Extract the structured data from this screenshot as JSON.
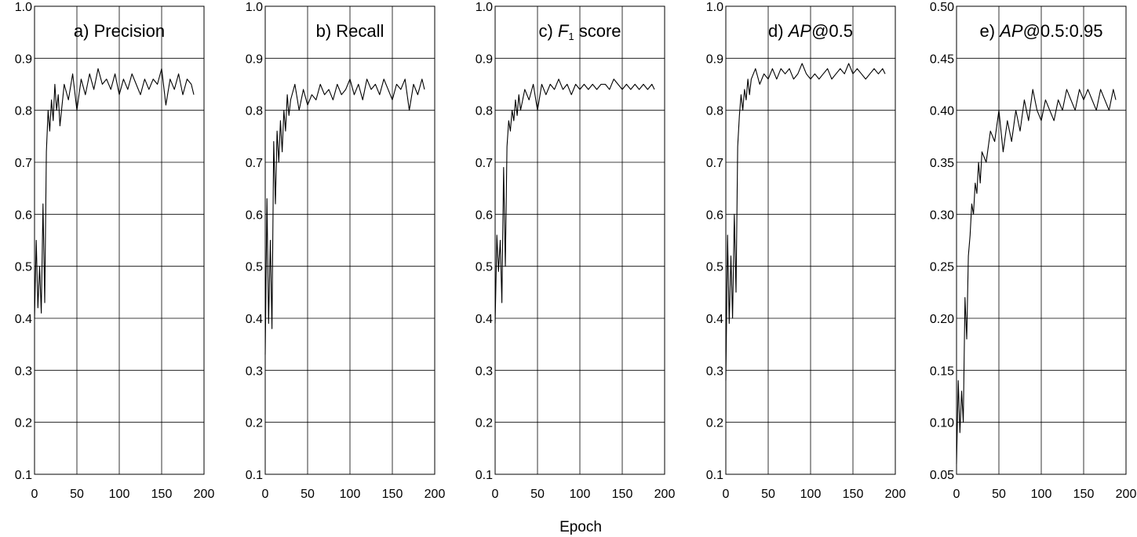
{
  "figure": {
    "xlabel": "Epoch"
  },
  "chart_data": [
    {
      "type": "line",
      "title_prefix": "a) ",
      "title_italic": "",
      "title_sub": "",
      "title_rest": "Precision",
      "xlim": [
        0,
        200
      ],
      "ylim": [
        0.1,
        1.0
      ],
      "xticks": [
        0,
        50,
        100,
        150,
        200
      ],
      "xtick_labels": [
        "0",
        "50",
        "100",
        "150",
        "200"
      ],
      "yticks": [
        0.1,
        0.2,
        0.3,
        0.4,
        0.5,
        0.6,
        0.7,
        0.8,
        0.9,
        1.0
      ],
      "ytick_labels": [
        "0.1",
        "0.2",
        "0.3",
        "0.4",
        "0.5",
        "0.6",
        "0.7",
        "0.8",
        "0.9",
        "1.0"
      ],
      "grid": true,
      "series": [
        {
          "x": [
            0,
            2,
            4,
            6,
            8,
            10,
            12,
            14,
            16,
            18,
            20,
            22,
            24,
            26,
            28,
            30,
            35,
            40,
            45,
            50,
            55,
            60,
            65,
            70,
            75,
            80,
            85,
            90,
            95,
            100,
            105,
            110,
            115,
            120,
            125,
            130,
            135,
            140,
            145,
            150,
            155,
            160,
            165,
            170,
            175,
            180,
            185,
            188
          ],
          "y": [
            0.4,
            0.55,
            0.42,
            0.5,
            0.41,
            0.62,
            0.43,
            0.72,
            0.8,
            0.76,
            0.82,
            0.78,
            0.85,
            0.8,
            0.83,
            0.77,
            0.85,
            0.82,
            0.87,
            0.8,
            0.86,
            0.83,
            0.87,
            0.84,
            0.88,
            0.85,
            0.86,
            0.84,
            0.87,
            0.83,
            0.86,
            0.84,
            0.87,
            0.85,
            0.83,
            0.86,
            0.84,
            0.86,
            0.85,
            0.88,
            0.81,
            0.86,
            0.84,
            0.87,
            0.83,
            0.86,
            0.85,
            0.83
          ]
        }
      ]
    },
    {
      "type": "line",
      "title_prefix": "b) ",
      "title_italic": "",
      "title_sub": "",
      "title_rest": "Recall",
      "xlim": [
        0,
        200
      ],
      "ylim": [
        0.1,
        1.0
      ],
      "xticks": [
        0,
        50,
        100,
        150,
        200
      ],
      "xtick_labels": [
        "0",
        "50",
        "100",
        "150",
        "200"
      ],
      "yticks": [
        0.1,
        0.2,
        0.3,
        0.4,
        0.5,
        0.6,
        0.7,
        0.8,
        0.9,
        1.0
      ],
      "ytick_labels": [
        "0.1",
        "0.2",
        "0.3",
        "0.4",
        "0.5",
        "0.6",
        "0.7",
        "0.8",
        "0.9",
        "1.0"
      ],
      "grid": true,
      "series": [
        {
          "x": [
            0,
            2,
            4,
            6,
            8,
            10,
            12,
            14,
            16,
            18,
            20,
            22,
            24,
            26,
            28,
            30,
            35,
            40,
            45,
            50,
            55,
            60,
            65,
            70,
            75,
            80,
            85,
            90,
            95,
            100,
            105,
            110,
            115,
            120,
            125,
            130,
            135,
            140,
            145,
            150,
            155,
            160,
            165,
            170,
            175,
            180,
            185,
            188
          ],
          "y": [
            0.33,
            0.63,
            0.39,
            0.55,
            0.38,
            0.74,
            0.62,
            0.76,
            0.7,
            0.78,
            0.72,
            0.8,
            0.76,
            0.83,
            0.79,
            0.82,
            0.85,
            0.8,
            0.84,
            0.81,
            0.83,
            0.82,
            0.85,
            0.83,
            0.84,
            0.82,
            0.85,
            0.83,
            0.84,
            0.86,
            0.83,
            0.85,
            0.82,
            0.86,
            0.84,
            0.85,
            0.83,
            0.86,
            0.84,
            0.82,
            0.85,
            0.84,
            0.86,
            0.8,
            0.85,
            0.83,
            0.86,
            0.84
          ]
        }
      ]
    },
    {
      "type": "line",
      "title_prefix": "c) ",
      "title_italic": "F",
      "title_sub": "1",
      "title_rest": " score",
      "xlim": [
        0,
        200
      ],
      "ylim": [
        0.1,
        1.0
      ],
      "xticks": [
        0,
        50,
        100,
        150,
        200
      ],
      "xtick_labels": [
        "0",
        "50",
        "100",
        "150",
        "200"
      ],
      "yticks": [
        0.1,
        0.2,
        0.3,
        0.4,
        0.5,
        0.6,
        0.7,
        0.8,
        0.9,
        1.0
      ],
      "ytick_labels": [
        "0.1",
        "0.2",
        "0.3",
        "0.4",
        "0.5",
        "0.6",
        "0.7",
        "0.8",
        "0.9",
        "1.0"
      ],
      "grid": true,
      "series": [
        {
          "x": [
            0,
            2,
            4,
            6,
            8,
            10,
            12,
            14,
            16,
            18,
            20,
            22,
            24,
            26,
            28,
            30,
            35,
            40,
            45,
            50,
            55,
            60,
            65,
            70,
            75,
            80,
            85,
            90,
            95,
            100,
            105,
            110,
            115,
            120,
            125,
            130,
            135,
            140,
            145,
            150,
            155,
            160,
            165,
            170,
            175,
            180,
            185,
            188
          ],
          "y": [
            0.39,
            0.56,
            0.49,
            0.55,
            0.43,
            0.69,
            0.5,
            0.73,
            0.78,
            0.76,
            0.8,
            0.78,
            0.82,
            0.79,
            0.83,
            0.8,
            0.84,
            0.82,
            0.85,
            0.8,
            0.85,
            0.83,
            0.85,
            0.84,
            0.86,
            0.84,
            0.85,
            0.83,
            0.85,
            0.84,
            0.85,
            0.84,
            0.85,
            0.84,
            0.85,
            0.85,
            0.84,
            0.86,
            0.85,
            0.84,
            0.85,
            0.84,
            0.85,
            0.84,
            0.85,
            0.84,
            0.85,
            0.84
          ]
        }
      ]
    },
    {
      "type": "line",
      "title_prefix": "d) ",
      "title_italic": "AP",
      "title_sub": "",
      "title_rest": "@0.5",
      "xlim": [
        0,
        200
      ],
      "ylim": [
        0.1,
        1.0
      ],
      "xticks": [
        0,
        50,
        100,
        150,
        200
      ],
      "xtick_labels": [
        "0",
        "50",
        "100",
        "150",
        "200"
      ],
      "yticks": [
        0.1,
        0.2,
        0.3,
        0.4,
        0.5,
        0.6,
        0.7,
        0.8,
        0.9,
        1.0
      ],
      "ytick_labels": [
        "0.1",
        "0.2",
        "0.3",
        "0.4",
        "0.5",
        "0.6",
        "0.7",
        "0.8",
        "0.9",
        "1.0"
      ],
      "grid": true,
      "series": [
        {
          "x": [
            0,
            2,
            4,
            6,
            8,
            10,
            12,
            14,
            16,
            18,
            20,
            22,
            24,
            26,
            28,
            30,
            35,
            40,
            45,
            50,
            55,
            60,
            65,
            70,
            75,
            80,
            85,
            90,
            95,
            100,
            105,
            110,
            115,
            120,
            125,
            130,
            135,
            140,
            145,
            150,
            155,
            160,
            165,
            170,
            175,
            180,
            185,
            188
          ],
          "y": [
            0.28,
            0.56,
            0.39,
            0.52,
            0.4,
            0.6,
            0.45,
            0.73,
            0.79,
            0.83,
            0.8,
            0.84,
            0.82,
            0.86,
            0.83,
            0.86,
            0.88,
            0.85,
            0.87,
            0.86,
            0.88,
            0.86,
            0.88,
            0.87,
            0.88,
            0.86,
            0.87,
            0.89,
            0.87,
            0.86,
            0.87,
            0.86,
            0.87,
            0.88,
            0.86,
            0.87,
            0.88,
            0.87,
            0.89,
            0.87,
            0.88,
            0.87,
            0.86,
            0.87,
            0.88,
            0.87,
            0.88,
            0.87
          ]
        }
      ]
    },
    {
      "type": "line",
      "title_prefix": "e) ",
      "title_italic": "AP",
      "title_sub": "",
      "title_rest": "@0.5:0.95",
      "xlim": [
        0,
        200
      ],
      "ylim": [
        0.05,
        0.5
      ],
      "xticks": [
        0,
        50,
        100,
        150,
        200
      ],
      "xtick_labels": [
        "0",
        "50",
        "100",
        "150",
        "200"
      ],
      "yticks": [
        0.05,
        0.1,
        0.15,
        0.2,
        0.25,
        0.3,
        0.35,
        0.4,
        0.45,
        0.5
      ],
      "ytick_labels": [
        "0.05",
        "0.10",
        "0.15",
        "0.20",
        "0.25",
        "0.30",
        "0.35",
        "0.40",
        "0.45",
        "0.50"
      ],
      "grid": true,
      "series": [
        {
          "x": [
            0,
            2,
            4,
            6,
            8,
            10,
            12,
            14,
            16,
            18,
            20,
            22,
            24,
            26,
            28,
            30,
            35,
            40,
            45,
            50,
            55,
            60,
            65,
            70,
            75,
            80,
            85,
            90,
            95,
            100,
            105,
            110,
            115,
            120,
            125,
            130,
            135,
            140,
            145,
            150,
            155,
            160,
            165,
            170,
            175,
            180,
            185,
            188
          ],
          "y": [
            0.06,
            0.14,
            0.09,
            0.13,
            0.1,
            0.22,
            0.18,
            0.26,
            0.28,
            0.31,
            0.3,
            0.33,
            0.32,
            0.35,
            0.33,
            0.36,
            0.35,
            0.38,
            0.37,
            0.4,
            0.36,
            0.39,
            0.37,
            0.4,
            0.38,
            0.41,
            0.39,
            0.42,
            0.4,
            0.39,
            0.41,
            0.4,
            0.39,
            0.41,
            0.4,
            0.42,
            0.41,
            0.4,
            0.42,
            0.41,
            0.42,
            0.41,
            0.4,
            0.42,
            0.41,
            0.4,
            0.42,
            0.41
          ]
        }
      ]
    }
  ]
}
